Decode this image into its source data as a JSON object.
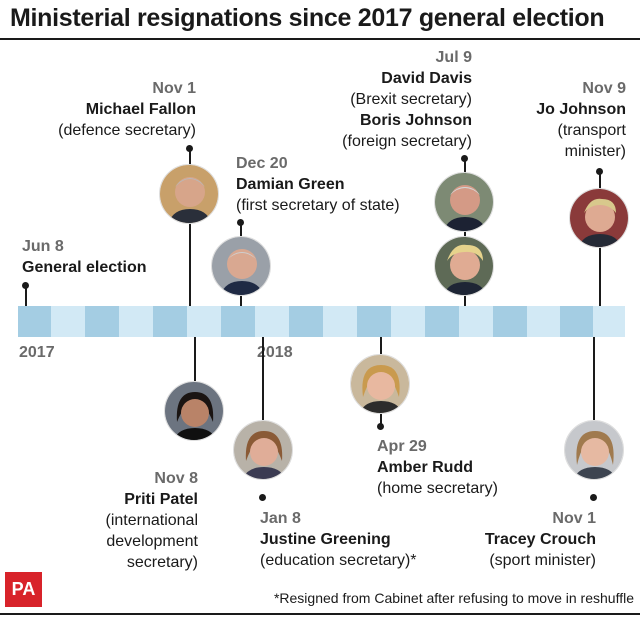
{
  "title": "Ministerial resignations since 2017 general election",
  "years": {
    "y2017": "2017",
    "y2018": "2018"
  },
  "colors": {
    "dark": "#a4cde3",
    "light": "#d2e9f5",
    "logo": "#d8232a"
  },
  "events": {
    "general": {
      "date": "Jun 8",
      "name": "General election"
    },
    "fallon": {
      "date": "Nov 1",
      "name": "Michael Fallon",
      "role": "(defence secretary)"
    },
    "green": {
      "date": "Dec 20",
      "name": "Damian Green",
      "role": "(first secretary of state)"
    },
    "davis": {
      "date": "Jul 9",
      "name": "David Davis",
      "role": "(Brexit secretary)"
    },
    "boris": {
      "name": "Boris Johnson",
      "role": "(foreign secretary)"
    },
    "jo": {
      "date": "Nov 9",
      "name": "Jo Johnson",
      "role1": "(transport",
      "role2": "minister)"
    },
    "patel": {
      "date": "Nov 8",
      "name": "Priti Patel",
      "role1": "(international",
      "role2": "development",
      "role3": "secretary)"
    },
    "greening": {
      "date": "Jan 8",
      "name": "Justine Greening",
      "role": "(education secretary)*"
    },
    "rudd": {
      "date": "Apr 29",
      "name": "Amber Rudd",
      "role": "(home secretary)"
    },
    "crouch": {
      "date": "Nov 1",
      "name": "Tracey Crouch",
      "role": "(sport minister)"
    }
  },
  "logo": "PA",
  "footnote": "*Resigned from Cabinet after refusing to move in reshuffle"
}
